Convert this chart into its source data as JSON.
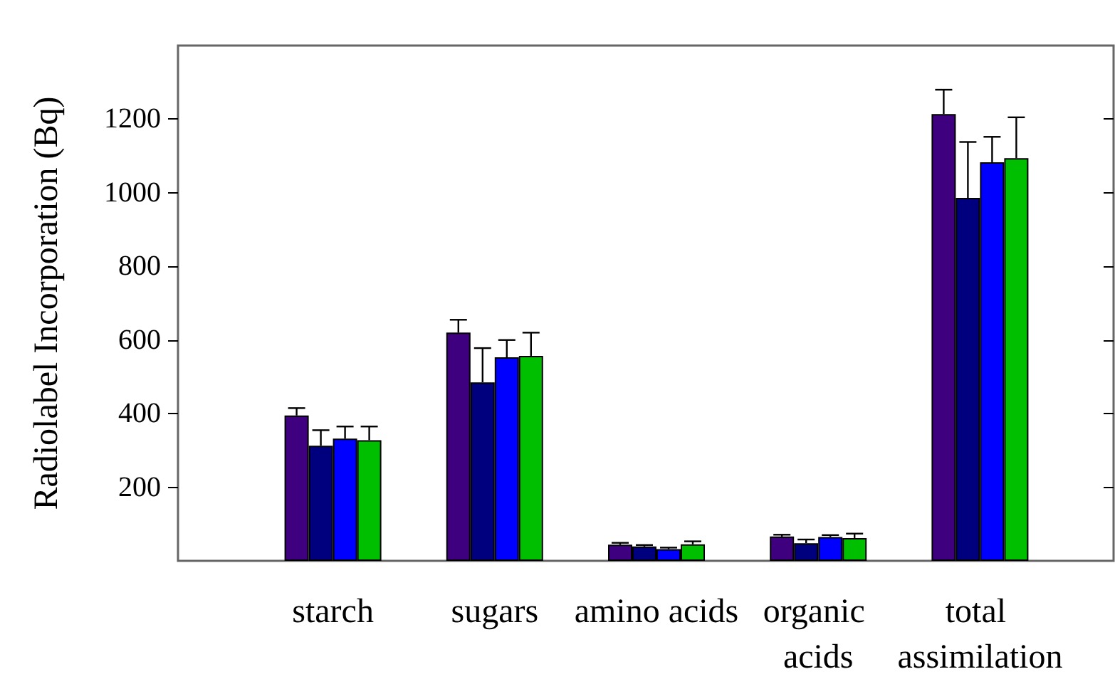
{
  "chart_data": {
    "type": "bar",
    "ylabel": "Radiolabel Incorporation (Bq)",
    "categories": [
      "starch",
      "sugars",
      "amino acids",
      "organic acids",
      "total assimilation"
    ],
    "ylim": [
      0,
      1400
    ],
    "yticks": [
      200,
      400,
      600,
      800,
      1000,
      1200
    ],
    "grid": false,
    "series": [
      {
        "color": "#3f007f",
        "values": [
          395,
          620,
          44,
          66,
          1214
        ],
        "errors": [
          [
            395,
            415
          ],
          [
            620,
            655
          ],
          [
            44,
            49
          ],
          [
            66,
            71
          ],
          [
            1214,
            1280
          ]
        ]
      },
      {
        "color": "#00007f",
        "values": [
          313,
          485,
          39,
          48,
          986
        ],
        "errors": [
          [
            313,
            355
          ],
          [
            485,
            578
          ],
          [
            39,
            43
          ],
          [
            48,
            58
          ],
          [
            986,
            1138
          ]
        ]
      },
      {
        "color": "#0000ff",
        "values": [
          332,
          553,
          32,
          65,
          1083
        ],
        "errors": [
          [
            332,
            365
          ],
          [
            553,
            600
          ],
          [
            32,
            36
          ],
          [
            65,
            70
          ],
          [
            1083,
            1152
          ]
        ]
      },
      {
        "color": "#00bf00",
        "values": [
          328,
          557,
          45,
          62,
          1094
        ],
        "errors": [
          [
            328,
            365
          ],
          [
            557,
            620
          ],
          [
            45,
            53
          ],
          [
            62,
            74
          ],
          [
            1094,
            1205
          ]
        ]
      }
    ]
  }
}
